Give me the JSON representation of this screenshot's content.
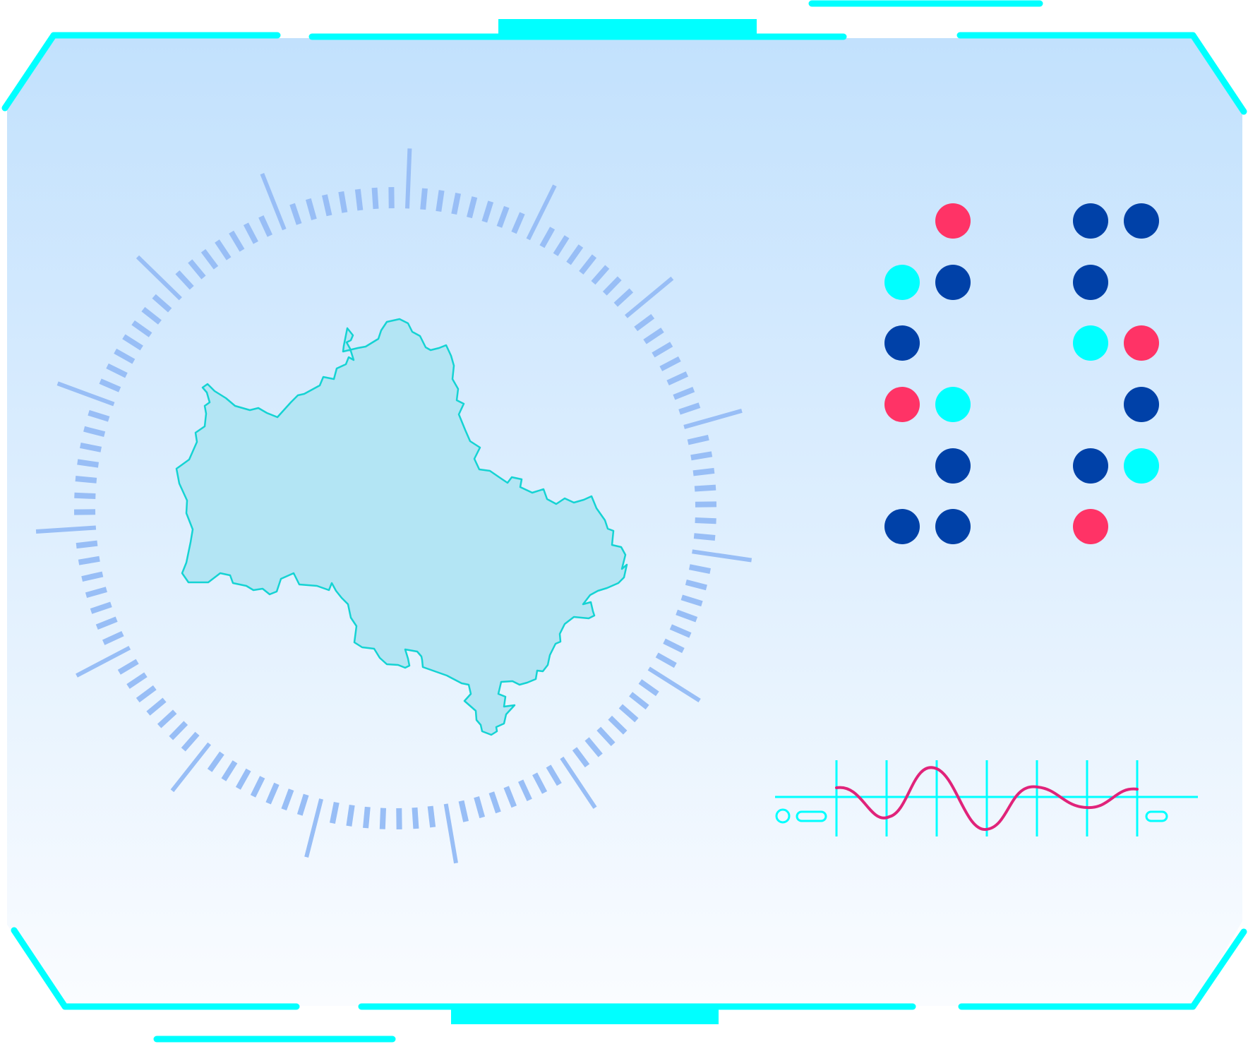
{
  "colors": {
    "frame_accent": "#00FFFF",
    "panel_gradient_top": "#C2E1FD",
    "panel_gradient_bottom": "#FAFCFF",
    "region_fill": "#B3E5F4",
    "region_stroke": "#15D3D3",
    "dial_ticks": "#98BEF6",
    "dot_navy": "#0041A8",
    "dot_cyan": "#00FFFF",
    "dot_pink": "#FF3366",
    "wave_line": "#E0237A",
    "wave_grid": "#00FFFF"
  },
  "icons": {
    "frame": "hud-frame-brackets",
    "region": "region-map-outline",
    "dial": "radial-tick-dial",
    "dots": "status-dot-matrix",
    "oscilloscope": "waveform-oscilloscope-icon"
  },
  "dot_matrix": {
    "rows": [
      [
        "empty",
        "pink",
        "gap",
        "navy",
        "navy"
      ],
      [
        "cyan",
        "navy",
        "gap",
        "navy",
        "empty"
      ],
      [
        "navy",
        "empty",
        "gap",
        "cyan",
        "pink"
      ],
      [
        "pink",
        "cyan",
        "gap",
        "empty",
        "navy"
      ],
      [
        "empty",
        "navy",
        "gap",
        "navy",
        "cyan"
      ],
      [
        "navy",
        "navy",
        "gap",
        "pink",
        "empty"
      ]
    ]
  },
  "oscilloscope": {
    "grid_lines": 7
  }
}
